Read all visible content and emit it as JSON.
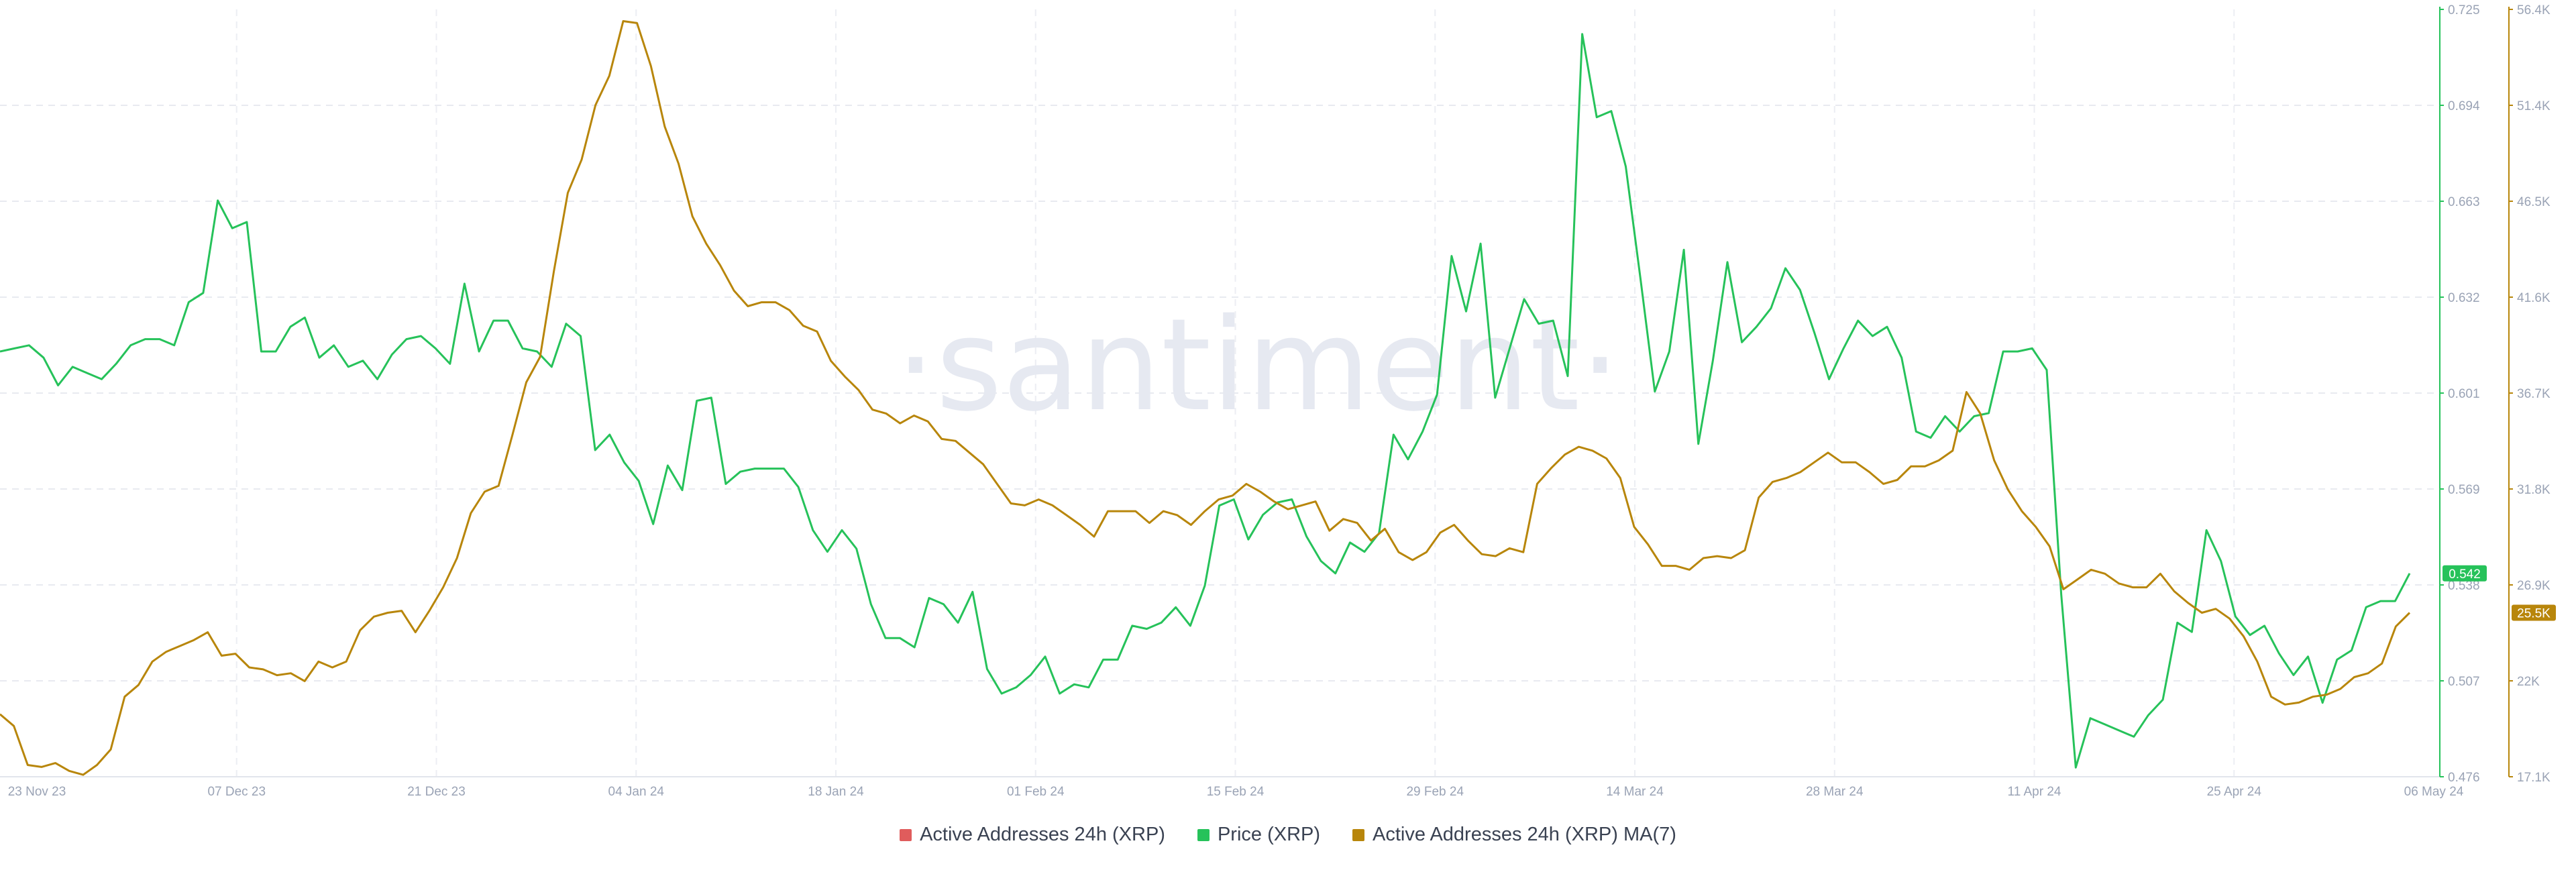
{
  "chart_data": {
    "type": "line",
    "watermark": "·santiment·",
    "x_ticks": [
      "23 Nov 23",
      "07 Dec 23",
      "21 Dec 23",
      "04 Jan 24",
      "18 Jan 24",
      "01 Feb 24",
      "15 Feb 24",
      "29 Feb 24",
      "14 Mar 24",
      "28 Mar 24",
      "11 Apr 24",
      "25 Apr 24",
      "06 May 24"
    ],
    "x_start": "2023-11-22",
    "x_end": "2024-05-06",
    "y_price_ticks": [
      "0.725",
      "0.694",
      "0.663",
      "0.632",
      "0.601",
      "0.569",
      "0.538",
      "0.507",
      "0.476"
    ],
    "y_price_range": [
      0.476,
      0.725
    ],
    "y_addr_ticks": [
      "56.4K",
      "51.4K",
      "46.5K",
      "41.6K",
      "36.7K",
      "31.8K",
      "26.9K",
      "22K",
      "17.1K"
    ],
    "y_addr_range": [
      17100,
      56400
    ],
    "price_badge": "0.542",
    "addr_badge": "25.5K",
    "legend": [
      {
        "label": "Active Addresses 24h (XRP)",
        "color": "#e05c5c"
      },
      {
        "label": "Price (XRP)",
        "color": "#26c25a"
      },
      {
        "label": "Active Addresses 24h (XRP) MA(7)",
        "color": "#b8860b"
      }
    ],
    "series": [
      {
        "name": "Price (XRP)",
        "color": "#26c25a",
        "axis": "right-1",
        "values": [
          0.614,
          0.615,
          0.616,
          0.612,
          0.603,
          0.609,
          0.607,
          0.605,
          0.61,
          0.616,
          0.618,
          0.618,
          0.616,
          0.63,
          0.633,
          0.663,
          0.654,
          0.656,
          0.614,
          0.614,
          0.622,
          0.625,
          0.612,
          0.616,
          0.609,
          0.611,
          0.605,
          0.613,
          0.618,
          0.619,
          0.615,
          0.61,
          0.636,
          0.614,
          0.624,
          0.624,
          0.615,
          0.614,
          0.609,
          0.623,
          0.619,
          0.582,
          0.587,
          0.578,
          0.572,
          0.558,
          0.577,
          0.569,
          0.598,
          0.599,
          0.571,
          0.575,
          0.576,
          0.576,
          0.576,
          0.57,
          0.556,
          0.549,
          0.556,
          0.55,
          0.532,
          0.521,
          0.521,
          0.518,
          0.534,
          0.532,
          0.526,
          0.536,
          0.511,
          0.503,
          0.505,
          0.509,
          0.515,
          0.503,
          0.506,
          0.505,
          0.514,
          0.514,
          0.525,
          0.524,
          0.526,
          0.531,
          0.525,
          0.538,
          0.564,
          0.566,
          0.553,
          0.561,
          0.565,
          0.566,
          0.554,
          0.546,
          0.542,
          0.552,
          0.549,
          0.555,
          0.587,
          0.579,
          0.588,
          0.6,
          0.645,
          0.627,
          0.649,
          0.599,
          0.615,
          0.631,
          0.623,
          0.624,
          0.606,
          0.717,
          0.69,
          0.692,
          0.674,
          0.638,
          0.601,
          0.614,
          0.647,
          0.584,
          0.611,
          0.643,
          0.617,
          0.622,
          0.628,
          0.641,
          0.634,
          0.62,
          0.605,
          0.615,
          0.624,
          0.619,
          0.622,
          0.612,
          0.588,
          0.586,
          0.593,
          0.588,
          0.593,
          0.594,
          0.614,
          0.614,
          0.615,
          0.608,
          0.535,
          0.479,
          0.495,
          0.493,
          0.491,
          0.489,
          0.496,
          0.501,
          0.526,
          0.523,
          0.556,
          0.546,
          0.528,
          0.522,
          0.525,
          0.516,
          0.509,
          0.515,
          0.5,
          0.514,
          0.517,
          0.531,
          0.533,
          0.533,
          0.542
        ]
      },
      {
        "name": "Active Addresses 24h (XRP) MA(7)",
        "color": "#b8860b",
        "axis": "right-2",
        "values": [
          20300,
          19700,
          17700,
          17600,
          17800,
          17400,
          17200,
          17700,
          18500,
          21200,
          21800,
          23000,
          23500,
          23800,
          24100,
          24500,
          23300,
          23400,
          22700,
          22600,
          22300,
          22400,
          22000,
          23000,
          22700,
          23000,
          24600,
          25300,
          25500,
          25600,
          24500,
          25600,
          26800,
          28300,
          30600,
          31700,
          32000,
          34600,
          37300,
          38600,
          43000,
          47000,
          48700,
          51500,
          53000,
          55800,
          55700,
          53500,
          50400,
          48500,
          45800,
          44400,
          43300,
          42000,
          41200,
          41400,
          41400,
          41000,
          40200,
          39900,
          38400,
          37600,
          36900,
          35900,
          35700,
          35200,
          35600,
          35300,
          34400,
          34300,
          33700,
          33100,
          32100,
          31100,
          31000,
          31300,
          31000,
          30500,
          30000,
          29400,
          30700,
          30700,
          30700,
          30100,
          30700,
          30500,
          30000,
          30700,
          31300,
          31500,
          32100,
          31700,
          31200,
          30800,
          31000,
          31200,
          29700,
          30300,
          30100,
          29200,
          29800,
          28600,
          28200,
          28600,
          29600,
          30000,
          29200,
          28500,
          28400,
          28800,
          28600,
          32100,
          32900,
          33600,
          34000,
          33800,
          33400,
          32400,
          29900,
          29000,
          27900,
          27900,
          27700,
          28300,
          28400,
          28300,
          28700,
          31400,
          32200,
          32400,
          32700,
          33200,
          33700,
          33200,
          33200,
          32700,
          32100,
          32300,
          33000,
          33000,
          33300,
          33800,
          36800,
          35700,
          33300,
          31800,
          30700,
          29900,
          28900,
          26700,
          27200,
          27700,
          27500,
          27000,
          26800,
          26800,
          27500,
          26600,
          26000,
          25500,
          25700,
          25200,
          24300,
          23000,
          21200,
          20800,
          20900,
          21200,
          21300,
          21600,
          22200,
          22400,
          22900,
          24800,
          25500
        ]
      }
    ]
  }
}
